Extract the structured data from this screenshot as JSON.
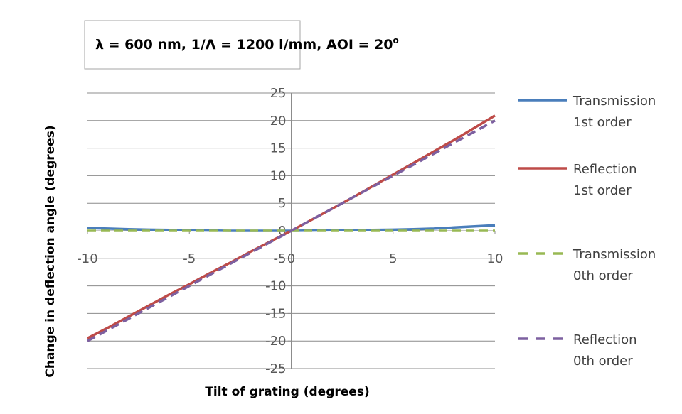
{
  "chart_data": {
    "type": "line",
    "title": "λ = 600 nm, 1/Λ = 1200 l/mm,  AOI = 20",
    "title_superscript": "o",
    "xlabel": "Tilt of grating (degrees)",
    "ylabel": "Change in deflection angle (degrees)",
    "xlim": [
      -10,
      10
    ],
    "ylim": [
      -25,
      25
    ],
    "x_ticks": [
      -10,
      -5,
      0,
      5,
      10
    ],
    "y_ticks": [
      25,
      20,
      15,
      10,
      5,
      0,
      -5,
      -10,
      -15,
      -20,
      -25
    ],
    "grid": "horizontal",
    "legend_position": "right",
    "x": [
      -10,
      -9,
      -8,
      -7,
      -6,
      -5,
      -4,
      -3,
      -2,
      -1,
      0,
      1,
      2,
      3,
      4,
      5,
      6,
      7,
      8,
      9,
      10
    ],
    "series": [
      {
        "name": "Transmission 1st order",
        "legend_lines": [
          "Transmission",
          "1st order"
        ],
        "color": "#4a7ebb",
        "dash": "solid",
        "values": [
          0.5,
          0.4,
          0.3,
          0.2,
          0.15,
          0.1,
          0.05,
          0.0,
          0.0,
          0.0,
          0.0,
          0.05,
          0.1,
          0.1,
          0.15,
          0.2,
          0.3,
          0.4,
          0.6,
          0.8,
          1.0
        ]
      },
      {
        "name": "Reflection 1st order",
        "legend_lines": [
          "Reflection",
          "1st order"
        ],
        "color": "#be4b48",
        "dash": "solid",
        "values": [
          -19.5,
          -17.6,
          -15.6,
          -13.6,
          -11.6,
          -9.7,
          -7.7,
          -5.8,
          -3.8,
          -1.9,
          0,
          2.0,
          4.0,
          6.0,
          8.1,
          10.2,
          12.3,
          14.4,
          16.5,
          18.7,
          20.9
        ]
      },
      {
        "name": "Transmission 0th order",
        "legend_lines": [
          "Transmission",
          "0th order"
        ],
        "color": "#98b954",
        "dash": "dashed",
        "values": [
          0,
          0,
          0,
          0,
          0,
          0,
          0,
          0,
          0,
          0,
          0,
          0,
          0,
          0,
          0,
          0,
          0,
          0,
          0,
          0,
          0
        ]
      },
      {
        "name": "Reflection 0th order",
        "legend_lines": [
          "Reflection",
          "0th order"
        ],
        "color": "#7d60a0",
        "dash": "dashed",
        "values": [
          -20,
          -18,
          -16,
          -14,
          -12,
          -10,
          -8,
          -6,
          -4,
          -2,
          0,
          2,
          4,
          6,
          8,
          10,
          12,
          14,
          16,
          18,
          20
        ]
      }
    ]
  }
}
